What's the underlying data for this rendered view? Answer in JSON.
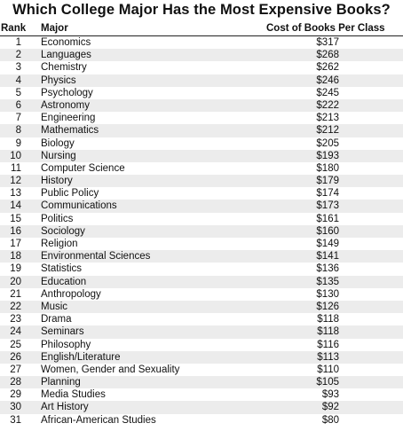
{
  "chart_data": {
    "type": "table",
    "title": "Which College Major Has the Most Expensive Books?",
    "columns": [
      "Rank",
      "Major",
      "Cost of Books Per Class"
    ],
    "rows": [
      {
        "rank": "1",
        "major": "Economics",
        "cost": "$317"
      },
      {
        "rank": "2",
        "major": "Languages",
        "cost": "$268"
      },
      {
        "rank": "3",
        "major": "Chemistry",
        "cost": "$262"
      },
      {
        "rank": "4",
        "major": "Physics",
        "cost": "$246"
      },
      {
        "rank": "5",
        "major": "Psychology",
        "cost": "$245"
      },
      {
        "rank": "6",
        "major": "Astronomy",
        "cost": "$222"
      },
      {
        "rank": "7",
        "major": "Engineering",
        "cost": "$213"
      },
      {
        "rank": "8",
        "major": "Mathematics",
        "cost": "$212"
      },
      {
        "rank": "9",
        "major": "Biology",
        "cost": "$205"
      },
      {
        "rank": "10",
        "major": "Nursing",
        "cost": "$193"
      },
      {
        "rank": "11",
        "major": "Computer Science",
        "cost": "$180"
      },
      {
        "rank": "12",
        "major": "History",
        "cost": "$179"
      },
      {
        "rank": "13",
        "major": "Public Policy",
        "cost": "$174"
      },
      {
        "rank": "14",
        "major": "Communications",
        "cost": "$173"
      },
      {
        "rank": "15",
        "major": "Politics",
        "cost": "$161"
      },
      {
        "rank": "16",
        "major": "Sociology",
        "cost": "$160"
      },
      {
        "rank": "17",
        "major": "Religion",
        "cost": "$149"
      },
      {
        "rank": "18",
        "major": "Environmental Sciences",
        "cost": "$141"
      },
      {
        "rank": "19",
        "major": "Statistics",
        "cost": "$136"
      },
      {
        "rank": "20",
        "major": "Education",
        "cost": "$135"
      },
      {
        "rank": "21",
        "major": "Anthropology",
        "cost": "$130"
      },
      {
        "rank": "22",
        "major": "Music",
        "cost": "$126"
      },
      {
        "rank": "23",
        "major": "Drama",
        "cost": "$118"
      },
      {
        "rank": "24",
        "major": "Seminars",
        "cost": "$118"
      },
      {
        "rank": "25",
        "major": "Philosophy",
        "cost": "$116"
      },
      {
        "rank": "26",
        "major": "English/Literature",
        "cost": "$113"
      },
      {
        "rank": "27",
        "major": "Women, Gender and Sexuality",
        "cost": "$110"
      },
      {
        "rank": "28",
        "major": "Planning",
        "cost": "$105"
      },
      {
        "rank": "29",
        "major": "Media Studies",
        "cost": "$93"
      },
      {
        "rank": "30",
        "major": "Art History",
        "cost": "$92"
      },
      {
        "rank": "31",
        "major": "African-American Studies",
        "cost": "$80"
      }
    ],
    "alternate_row_color": "#ececec"
  }
}
